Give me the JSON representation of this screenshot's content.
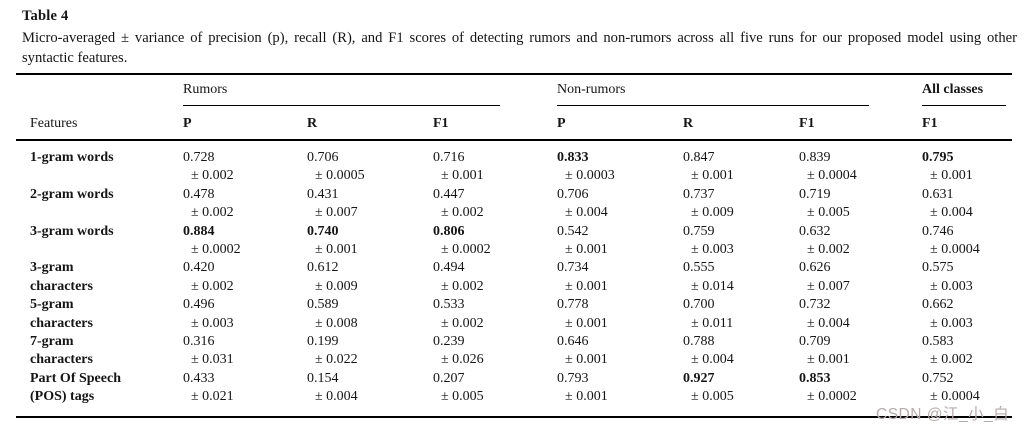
{
  "title": "Table 4",
  "caption": "Micro-averaged ± variance of precision (p), recall (R), and F1 scores of detecting rumors and non-rumors across all five runs for our proposed model using other syntactic features.",
  "watermark": "CSDN @江_小_白",
  "table": {
    "features_header": "Features",
    "groups": [
      {
        "label": "Rumors",
        "cols": [
          "P",
          "R",
          "F1"
        ]
      },
      {
        "label": "Non-rumors",
        "cols": [
          "P",
          "R",
          "F1"
        ]
      },
      {
        "label": "All classes",
        "cols": [
          "F1"
        ]
      }
    ],
    "rows": [
      {
        "feature": [
          "1-gram words"
        ],
        "cells": [
          {
            "value": "0.728",
            "variance": "± 0.002",
            "bold": false
          },
          {
            "value": "0.706",
            "variance": "± 0.0005",
            "bold": false
          },
          {
            "value": "0.716",
            "variance": "± 0.001",
            "bold": false
          },
          {
            "value": "0.833",
            "variance": "± 0.0003",
            "bold": true
          },
          {
            "value": "0.847",
            "variance": "± 0.001",
            "bold": false
          },
          {
            "value": "0.839",
            "variance": "± 0.0004",
            "bold": false
          },
          {
            "value": "0.795",
            "variance": "± 0.001",
            "bold": true
          }
        ]
      },
      {
        "feature": [
          "2-gram words"
        ],
        "cells": [
          {
            "value": "0.478",
            "variance": "± 0.002",
            "bold": false
          },
          {
            "value": "0.431",
            "variance": "± 0.007",
            "bold": false
          },
          {
            "value": "0.447",
            "variance": "± 0.002",
            "bold": false
          },
          {
            "value": "0.706",
            "variance": "± 0.004",
            "bold": false
          },
          {
            "value": "0.737",
            "variance": "± 0.009",
            "bold": false
          },
          {
            "value": "0.719",
            "variance": "± 0.005",
            "bold": false
          },
          {
            "value": "0.631",
            "variance": "± 0.004",
            "bold": false
          }
        ]
      },
      {
        "feature": [
          "3-gram words"
        ],
        "cells": [
          {
            "value": "0.884",
            "variance": "± 0.0002",
            "bold": true
          },
          {
            "value": "0.740",
            "variance": "± 0.001",
            "bold": true
          },
          {
            "value": "0.806",
            "variance": "± 0.0002",
            "bold": true
          },
          {
            "value": "0.542",
            "variance": "± 0.001",
            "bold": false
          },
          {
            "value": "0.759",
            "variance": "± 0.003",
            "bold": false
          },
          {
            "value": "0.632",
            "variance": "± 0.002",
            "bold": false
          },
          {
            "value": "0.746",
            "variance": "± 0.0004",
            "bold": false
          }
        ]
      },
      {
        "feature": [
          "3-gram",
          "characters"
        ],
        "cells": [
          {
            "value": "0.420",
            "variance": "± 0.002",
            "bold": false
          },
          {
            "value": "0.612",
            "variance": "± 0.009",
            "bold": false
          },
          {
            "value": "0.494",
            "variance": "± 0.002",
            "bold": false
          },
          {
            "value": "0.734",
            "variance": "± 0.001",
            "bold": false
          },
          {
            "value": "0.555",
            "variance": "± 0.014",
            "bold": false
          },
          {
            "value": "0.626",
            "variance": "± 0.007",
            "bold": false
          },
          {
            "value": "0.575",
            "variance": "± 0.003",
            "bold": false
          }
        ]
      },
      {
        "feature": [
          "5-gram",
          "characters"
        ],
        "cells": [
          {
            "value": "0.496",
            "variance": "± 0.003",
            "bold": false
          },
          {
            "value": "0.589",
            "variance": "± 0.008",
            "bold": false
          },
          {
            "value": "0.533",
            "variance": "± 0.002",
            "bold": false
          },
          {
            "value": "0.778",
            "variance": "± 0.001",
            "bold": false
          },
          {
            "value": "0.700",
            "variance": "± 0.011",
            "bold": false
          },
          {
            "value": "0.732",
            "variance": "± 0.004",
            "bold": false
          },
          {
            "value": "0.662",
            "variance": "± 0.003",
            "bold": false
          }
        ]
      },
      {
        "feature": [
          "7-gram",
          "characters"
        ],
        "cells": [
          {
            "value": "0.316",
            "variance": "± 0.031",
            "bold": false
          },
          {
            "value": "0.199",
            "variance": "± 0.022",
            "bold": false
          },
          {
            "value": "0.239",
            "variance": "± 0.026",
            "bold": false
          },
          {
            "value": "0.646",
            "variance": "± 0.001",
            "bold": false
          },
          {
            "value": "0.788",
            "variance": "± 0.004",
            "bold": false
          },
          {
            "value": "0.709",
            "variance": "± 0.001",
            "bold": false
          },
          {
            "value": "0.583",
            "variance": "± 0.002",
            "bold": false
          }
        ]
      },
      {
        "feature": [
          "Part Of Speech",
          "(POS) tags"
        ],
        "cells": [
          {
            "value": "0.433",
            "variance": "± 0.021",
            "bold": false
          },
          {
            "value": "0.154",
            "variance": "± 0.004",
            "bold": false
          },
          {
            "value": "0.207",
            "variance": "± 0.005",
            "bold": false
          },
          {
            "value": "0.793",
            "variance": "± 0.001",
            "bold": false
          },
          {
            "value": "0.927",
            "variance": "± 0.005",
            "bold": true
          },
          {
            "value": "0.853",
            "variance": "± 0.0002",
            "bold": true
          },
          {
            "value": "0.752",
            "variance": "± 0.0004",
            "bold": false
          }
        ]
      }
    ]
  }
}
